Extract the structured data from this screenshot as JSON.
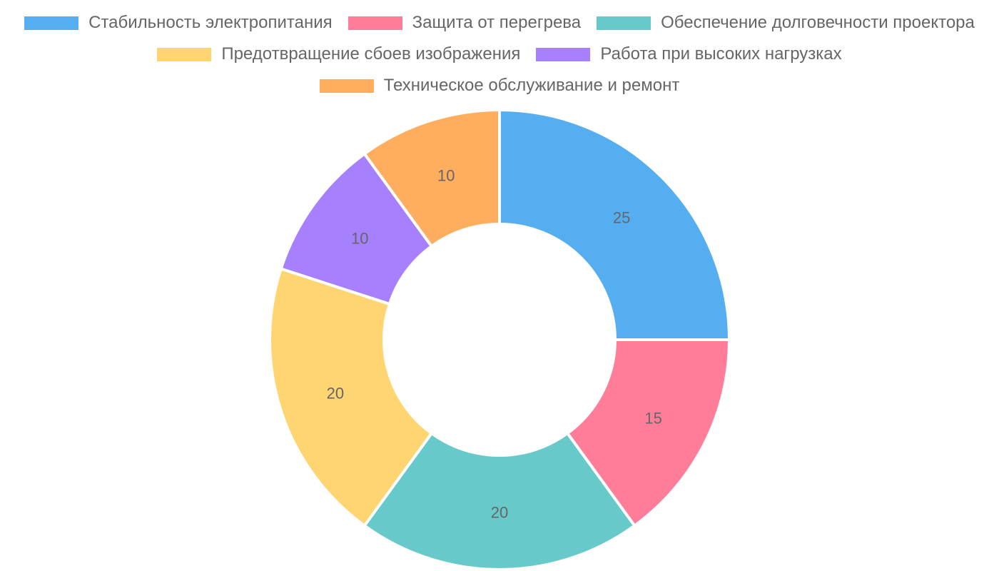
{
  "chart_data": {
    "type": "doughnut",
    "title": "",
    "legend_position": "top",
    "categories": [
      "Стабильность электропитания",
      "Защита от перегрева",
      "Обеспечение долговечности проектора",
      "Предотвращение сбоев изображения",
      "Работа при высоких нагрузках",
      "Техническое обслуживание и ремонт"
    ],
    "values": [
      25,
      15,
      20,
      20,
      10,
      10
    ],
    "colors": [
      "#54aef0",
      "#ff7d98",
      "#67c9c9",
      "#ffd572",
      "#a680fe",
      "#ffae5f"
    ],
    "value_labels": [
      "25",
      "15",
      "20",
      "20",
      "10",
      "10"
    ]
  }
}
